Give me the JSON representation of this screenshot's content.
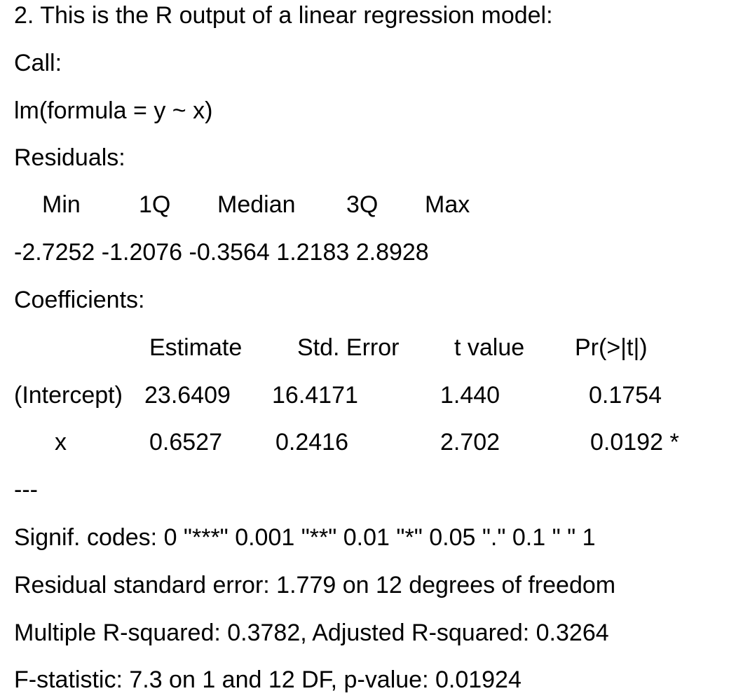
{
  "heading": "2. This is the R output of a linear regression model:",
  "call_label": "Call:",
  "call_formula": "lm(formula = y ~ x)",
  "residuals_label": "Residuals:",
  "residuals": {
    "headers": [
      "Min",
      "1Q",
      "Median",
      "3Q",
      "Max"
    ],
    "values_line": "-2.7252 -1.2076 -0.3564 1.2183 2.8928"
  },
  "coefficients_label": "Coefficients:",
  "coefficients": {
    "headers": [
      "Estimate",
      "Std. Error",
      "t value",
      "Pr(>|t|)"
    ],
    "rows": [
      {
        "term": "(Intercept)",
        "estimate": "23.6409",
        "std_error": "16.4171",
        "t_value": "1.440",
        "p_value": "0.1754"
      },
      {
        "term": "x",
        "estimate": "0.6527",
        "std_error": "0.2416",
        "t_value": "2.702",
        "p_value": "0.0192 *"
      }
    ]
  },
  "separator": "---",
  "signif_codes": "Signif. codes: 0 \"***\" 0.001 \"**\" 0.01 \"*\" 0.05 \".\" 0.1 \" \" 1",
  "residual_std_error": "Residual standard error: 1.779 on 12 degrees of freedom",
  "r_squared": "Multiple R-squared: 0.3782, Adjusted R-squared: 0.3264",
  "f_statistic": "F-statistic: 7.3 on 1 and 12 DF, p-value: 0.01924"
}
